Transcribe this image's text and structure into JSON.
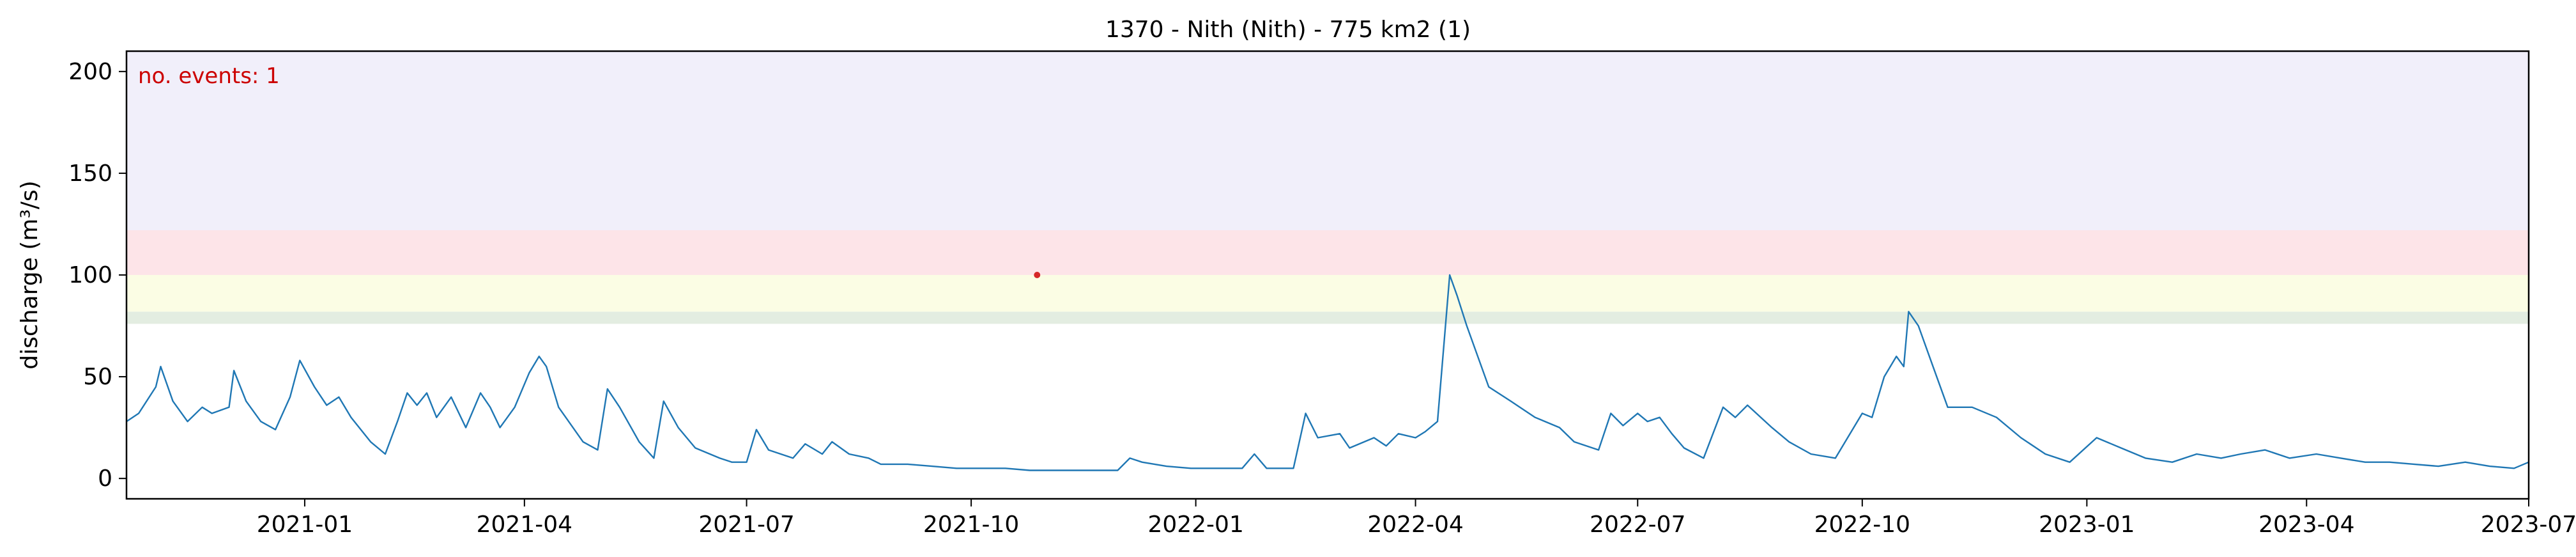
{
  "chart_data": {
    "type": "line",
    "title": "1370 - Nith (Nith) - 775 km2 (1)",
    "xlabel": "",
    "ylabel": "discharge (m³/s)",
    "annotation": "no. events: 1",
    "x_range": [
      "2020-10-20",
      "2023-07-01"
    ],
    "ylim": [
      -10,
      210
    ],
    "x_ticks": [
      "2021-01",
      "2021-04",
      "2021-07",
      "2021-10",
      "2022-01",
      "2022-04",
      "2022-07",
      "2022-10",
      "2023-01",
      "2023-04",
      "2023-07"
    ],
    "y_ticks": [
      0,
      50,
      100,
      150,
      200
    ],
    "grid": false,
    "legend": "none",
    "bands": [
      {
        "from": 76,
        "to": 82,
        "color": "#e3ede1"
      },
      {
        "from": 82,
        "to": 100,
        "color": "#fbfde4"
      },
      {
        "from": 100,
        "to": 122,
        "color": "#fde4e8"
      },
      {
        "from": 122,
        "to": 210,
        "color": "#f1effa"
      }
    ],
    "colors": {
      "line": "#1f77b4",
      "event": "#d62728",
      "annotation": "#cc0000"
    },
    "events": [
      {
        "x": "2021-10-28",
        "y": 100
      }
    ],
    "series": [
      {
        "points": [
          [
            "2020-10-20",
            28
          ],
          [
            "2020-10-25",
            32
          ],
          [
            "2020-11-01",
            45
          ],
          [
            "2020-11-03",
            55
          ],
          [
            "2020-11-08",
            38
          ],
          [
            "2020-11-14",
            28
          ],
          [
            "2020-11-20",
            35
          ],
          [
            "2020-11-24",
            32
          ],
          [
            "2020-12-01",
            35
          ],
          [
            "2020-12-03",
            53
          ],
          [
            "2020-12-08",
            38
          ],
          [
            "2020-12-14",
            28
          ],
          [
            "2020-12-20",
            24
          ],
          [
            "2020-12-26",
            40
          ],
          [
            "2020-12-30",
            58
          ],
          [
            "2021-01-05",
            45
          ],
          [
            "2021-01-10",
            36
          ],
          [
            "2021-01-15",
            40
          ],
          [
            "2021-01-20",
            30
          ],
          [
            "2021-01-28",
            18
          ],
          [
            "2021-02-03",
            12
          ],
          [
            "2021-02-08",
            28
          ],
          [
            "2021-02-12",
            42
          ],
          [
            "2021-02-16",
            36
          ],
          [
            "2021-02-20",
            42
          ],
          [
            "2021-02-24",
            30
          ],
          [
            "2021-03-02",
            40
          ],
          [
            "2021-03-08",
            25
          ],
          [
            "2021-03-14",
            42
          ],
          [
            "2021-03-18",
            35
          ],
          [
            "2021-03-22",
            25
          ],
          [
            "2021-03-28",
            35
          ],
          [
            "2021-04-03",
            52
          ],
          [
            "2021-04-07",
            60
          ],
          [
            "2021-04-10",
            55
          ],
          [
            "2021-04-15",
            35
          ],
          [
            "2021-04-25",
            18
          ],
          [
            "2021-05-01",
            14
          ],
          [
            "2021-05-05",
            44
          ],
          [
            "2021-05-10",
            35
          ],
          [
            "2021-05-18",
            18
          ],
          [
            "2021-05-24",
            10
          ],
          [
            "2021-05-28",
            38
          ],
          [
            "2021-06-03",
            25
          ],
          [
            "2021-06-10",
            15
          ],
          [
            "2021-06-20",
            10
          ],
          [
            "2021-06-25",
            8
          ],
          [
            "2021-07-01",
            8
          ],
          [
            "2021-07-05",
            24
          ],
          [
            "2021-07-10",
            14
          ],
          [
            "2021-07-20",
            10
          ],
          [
            "2021-07-25",
            17
          ],
          [
            "2021-08-01",
            12
          ],
          [
            "2021-08-05",
            18
          ],
          [
            "2021-08-12",
            12
          ],
          [
            "2021-08-20",
            10
          ],
          [
            "2021-08-25",
            7
          ],
          [
            "2021-09-05",
            7
          ],
          [
            "2021-09-15",
            6
          ],
          [
            "2021-09-25",
            5
          ],
          [
            "2021-10-05",
            5
          ],
          [
            "2021-10-15",
            5
          ],
          [
            "2021-10-25",
            4
          ],
          [
            "2021-11-01",
            4
          ],
          [
            "2021-11-10",
            4
          ],
          [
            "2021-11-20",
            4
          ],
          [
            "2021-11-30",
            4
          ],
          [
            "2021-12-05",
            10
          ],
          [
            "2021-12-10",
            8
          ],
          [
            "2021-12-20",
            6
          ],
          [
            "2021-12-30",
            5
          ],
          [
            "2022-01-10",
            5
          ],
          [
            "2022-01-20",
            5
          ],
          [
            "2022-01-25",
            12
          ],
          [
            "2022-01-30",
            5
          ],
          [
            "2022-02-05",
            5
          ],
          [
            "2022-02-10",
            5
          ],
          [
            "2022-02-15",
            32
          ],
          [
            "2022-02-20",
            20
          ],
          [
            "2022-03-01",
            22
          ],
          [
            "2022-03-05",
            15
          ],
          [
            "2022-03-15",
            20
          ],
          [
            "2022-03-20",
            16
          ],
          [
            "2022-03-25",
            22
          ],
          [
            "2022-04-01",
            20
          ],
          [
            "2022-04-05",
            23
          ],
          [
            "2022-04-10",
            28
          ],
          [
            "2022-04-15",
            100
          ],
          [
            "2022-04-18",
            90
          ],
          [
            "2022-04-22",
            75
          ],
          [
            "2022-05-01",
            45
          ],
          [
            "2022-05-10",
            38
          ],
          [
            "2022-05-20",
            30
          ],
          [
            "2022-05-30",
            25
          ],
          [
            "2022-06-05",
            18
          ],
          [
            "2022-06-15",
            14
          ],
          [
            "2022-06-20",
            32
          ],
          [
            "2022-06-25",
            26
          ],
          [
            "2022-07-01",
            32
          ],
          [
            "2022-07-05",
            28
          ],
          [
            "2022-07-10",
            30
          ],
          [
            "2022-07-15",
            22
          ],
          [
            "2022-07-20",
            15
          ],
          [
            "2022-07-28",
            10
          ],
          [
            "2022-08-05",
            35
          ],
          [
            "2022-08-10",
            30
          ],
          [
            "2022-08-15",
            36
          ],
          [
            "2022-08-25",
            25
          ],
          [
            "2022-09-01",
            18
          ],
          [
            "2022-09-10",
            12
          ],
          [
            "2022-09-20",
            10
          ],
          [
            "2022-10-01",
            32
          ],
          [
            "2022-10-05",
            30
          ],
          [
            "2022-10-10",
            50
          ],
          [
            "2022-10-15",
            60
          ],
          [
            "2022-10-18",
            55
          ],
          [
            "2022-10-20",
            82
          ],
          [
            "2022-10-24",
            75
          ],
          [
            "2022-10-30",
            55
          ],
          [
            "2022-11-05",
            35
          ],
          [
            "2022-11-15",
            35
          ],
          [
            "2022-11-25",
            30
          ],
          [
            "2022-12-05",
            20
          ],
          [
            "2022-12-15",
            12
          ],
          [
            "2022-12-25",
            8
          ],
          [
            "2023-01-05",
            20
          ],
          [
            "2023-01-15",
            15
          ],
          [
            "2023-01-25",
            10
          ],
          [
            "2023-02-05",
            8
          ],
          [
            "2023-02-15",
            12
          ],
          [
            "2023-02-25",
            10
          ],
          [
            "2023-03-05",
            12
          ],
          [
            "2023-03-15",
            14
          ],
          [
            "2023-03-25",
            10
          ],
          [
            "2023-04-05",
            12
          ],
          [
            "2023-04-15",
            10
          ],
          [
            "2023-04-25",
            8
          ],
          [
            "2023-05-05",
            8
          ],
          [
            "2023-05-15",
            7
          ],
          [
            "2023-05-25",
            6
          ],
          [
            "2023-06-05",
            8
          ],
          [
            "2023-06-15",
            6
          ],
          [
            "2023-06-25",
            5
          ],
          [
            "2023-07-01",
            8
          ]
        ]
      }
    ]
  }
}
